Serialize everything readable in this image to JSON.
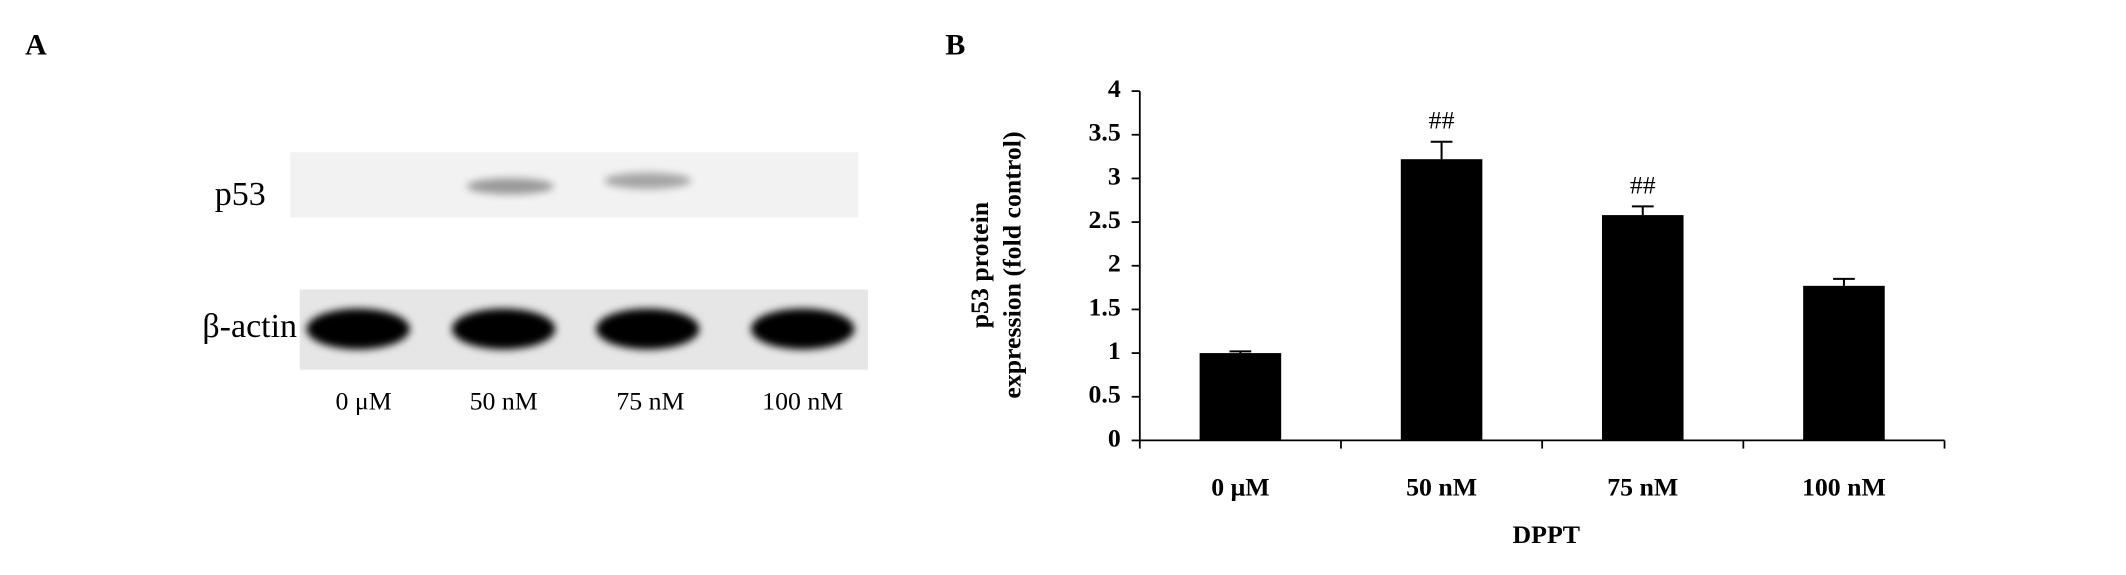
{
  "blot": {
    "label": "A",
    "rows": [
      "p53",
      "β-actin"
    ],
    "lanes": [
      "0 μM",
      "50 nM",
      "75 nM",
      "100 nM"
    ]
  },
  "chart_data": {
    "type": "bar",
    "panel_label": "B",
    "categories": [
      "0 μM",
      "50 nM",
      "75 nM",
      "100 nM"
    ],
    "values": [
      1.0,
      3.22,
      2.58,
      1.77
    ],
    "errors": [
      0.02,
      0.2,
      0.1,
      0.08
    ],
    "color": "#000000",
    "annotations": [
      {
        "category": "50 nM",
        "text": "##"
      },
      {
        "category": "75 nM",
        "text": "##"
      }
    ],
    "ylim": [
      0,
      4
    ],
    "yticks": [
      0,
      0.5,
      1,
      1.5,
      2,
      2.5,
      3,
      3.5,
      4
    ],
    "ylabel": [
      "p53 protein",
      "expression (fold control)"
    ],
    "xlabel": "DPPT",
    "grid": false
  }
}
